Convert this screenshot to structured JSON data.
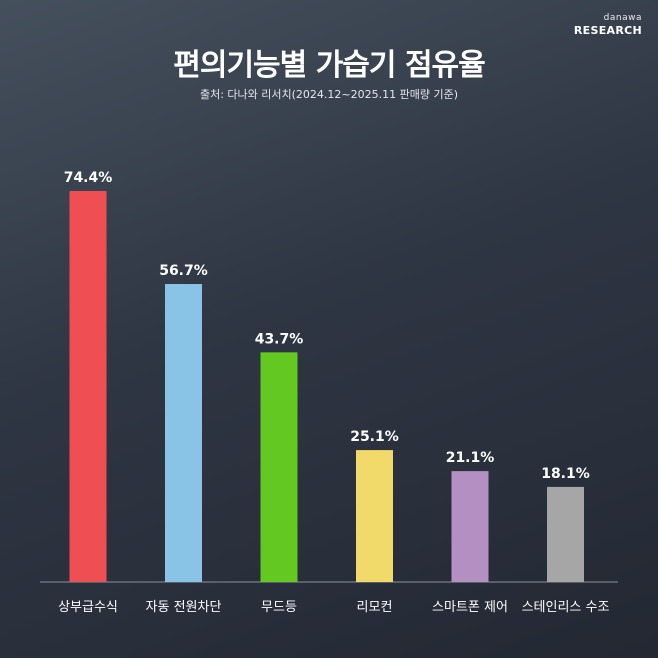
{
  "brand": {
    "line1": "danawa",
    "line2": "RESEARCH"
  },
  "header": {
    "title": "편의기능별 가습기 점유율",
    "subtitle": "출처: 다나와 리서치(2024.12~2025.11 판매량 기준)"
  },
  "colors": {
    "bars": [
      "#ef4f52",
      "#89c4e6",
      "#63c820",
      "#f1da6a",
      "#b38fc2",
      "#a6a6a6"
    ],
    "value_label": "#ffffff",
    "category_label": "#ffffff",
    "baseline": "#8c929c"
  },
  "chart_data": {
    "type": "bar",
    "title": "편의기능별 가습기 점유율",
    "categories": [
      "상부급수식",
      "자동 전원차단",
      "무드등",
      "리모컨",
      "스마트폰 제어",
      "스테인리스 수조"
    ],
    "values": [
      74.4,
      56.7,
      43.7,
      25.1,
      21.1,
      18.1
    ],
    "value_labels": [
      "74.4%",
      "56.7%",
      "43.7%",
      "25.1%",
      "21.1%",
      "18.1%"
    ],
    "unit": "%",
    "ylim": [
      0,
      74.4
    ],
    "grid": false,
    "legend": "none"
  }
}
